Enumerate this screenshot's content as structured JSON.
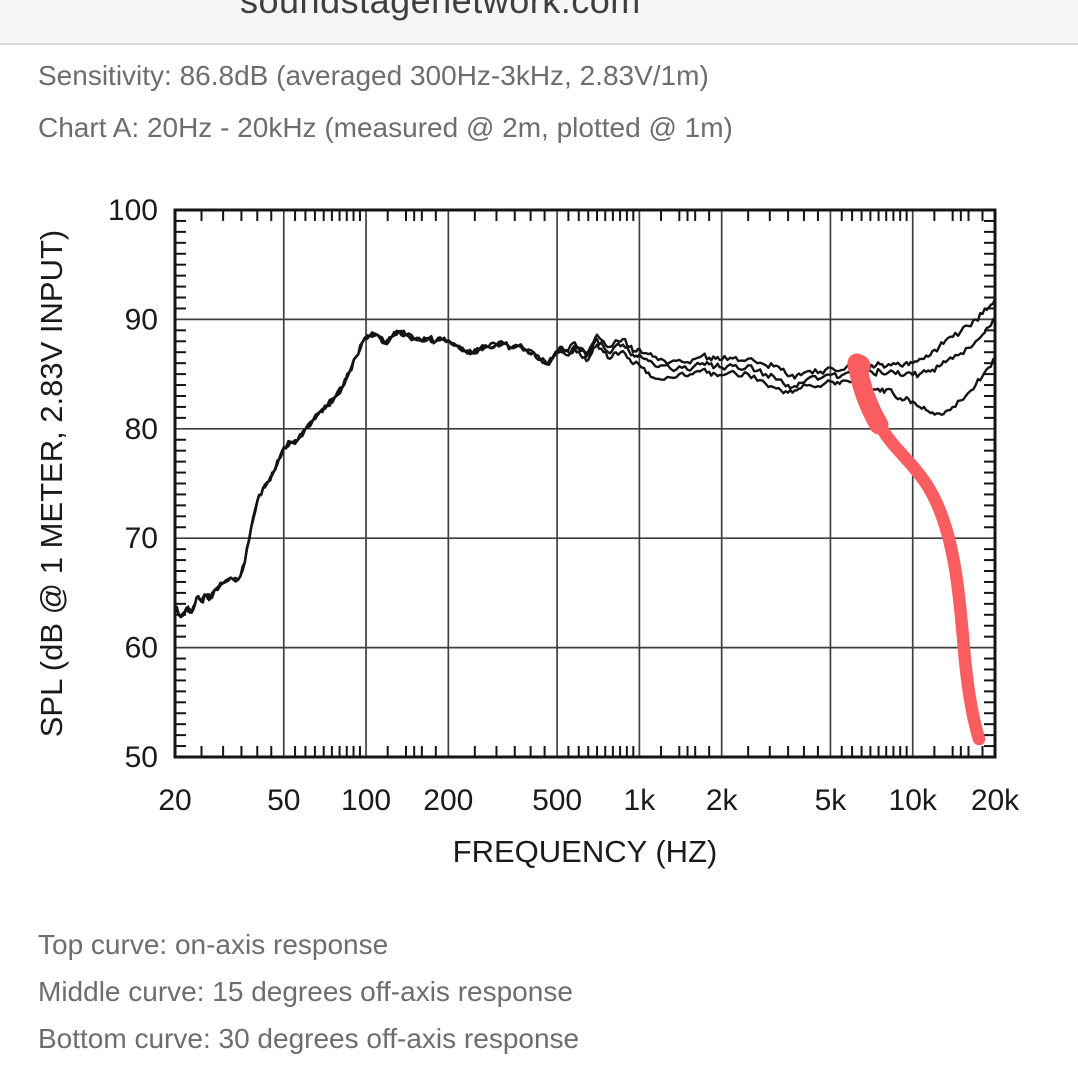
{
  "header": {
    "site_text": "soundstagenetwork.com"
  },
  "subtitles": {
    "sensitivity": "Sensitivity: 86.8dB (averaged 300Hz-3kHz, 2.83V/1m)",
    "chart_label": "Chart A: 20Hz - 20kHz (measured @ 2m, plotted @ 1m)"
  },
  "captions": [
    "Top curve: on-axis response",
    "Middle curve: 15 degrees off-axis response",
    "Bottom curve: 30 degrees off-axis response"
  ],
  "chart_data": {
    "type": "line",
    "xlabel": "FREQUENCY  (HZ)",
    "ylabel": "SPL (dB @ 1 METER, 2.83V INPUT)",
    "x_scale": "log",
    "xlim": [
      20,
      20000
    ],
    "ylim": [
      50,
      100
    ],
    "grid": true,
    "x_ticks": [
      {
        "value": 20,
        "label": "20"
      },
      {
        "value": 50,
        "label": "50"
      },
      {
        "value": 100,
        "label": "100"
      },
      {
        "value": 200,
        "label": "200"
      },
      {
        "value": 500,
        "label": "500"
      },
      {
        "value": 1000,
        "label": "1k"
      },
      {
        "value": 2000,
        "label": "2k"
      },
      {
        "value": 5000,
        "label": "5k"
      },
      {
        "value": 10000,
        "label": "10k"
      },
      {
        "value": 20000,
        "label": "20k"
      }
    ],
    "y_ticks": [
      100,
      90,
      80,
      70,
      60,
      50
    ],
    "x_gridlines": [
      50,
      100,
      200,
      500,
      1000,
      2000,
      5000,
      10000
    ],
    "y_gridlines": [
      60,
      70,
      80,
      90
    ],
    "line_color": "#141414",
    "frequencies": [
      20,
      21,
      22,
      23,
      24,
      25,
      26,
      27,
      28,
      30,
      32,
      34,
      36,
      38,
      40,
      42,
      44,
      46,
      48,
      50,
      53,
      56,
      60,
      64,
      68,
      72,
      77,
      82,
      87,
      92,
      97,
      103,
      110,
      117,
      124,
      132,
      140,
      150,
      160,
      170,
      180,
      190,
      200,
      215,
      230,
      245,
      260,
      280,
      300,
      320,
      340,
      360,
      385,
      410,
      435,
      460,
      480,
      500,
      520,
      550,
      580,
      610,
      640,
      670,
      700,
      740,
      780,
      820,
      870,
      920,
      960,
      1000,
      1060,
      1120,
      1200,
      1300,
      1400,
      1500,
      1600,
      1700,
      1800,
      1900,
      2000,
      2150,
      2300,
      2500,
      2700,
      2900,
      3100,
      3300,
      3500,
      3700,
      3900,
      4200,
      4500,
      4800,
      5100,
      5400,
      5700,
      6000,
      6400,
      6800,
      7200,
      7600,
      8000,
      8500,
      9000,
      9500,
      10000,
      10600,
      11200,
      11800,
      12500,
      13200,
      14000,
      15000,
      16000,
      17000,
      18000,
      19000,
      20000
    ],
    "series": [
      {
        "name": "on-axis response",
        "spl_db": [
          63.8,
          62.8,
          63.6,
          63.2,
          64.6,
          64.2,
          64.8,
          64.5,
          65.3,
          65.9,
          66.4,
          66.2,
          67.8,
          71.0,
          73.4,
          74.6,
          75.2,
          76.1,
          77.2,
          78.3,
          78.8,
          78.9,
          80.0,
          80.8,
          81.6,
          82.1,
          82.9,
          83.8,
          85.2,
          86.6,
          87.9,
          88.5,
          88.6,
          87.8,
          88.4,
          88.9,
          88.6,
          88.2,
          88.0,
          88.3,
          88.0,
          88.2,
          88.1,
          87.6,
          87.1,
          86.9,
          87.3,
          87.5,
          87.7,
          87.8,
          87.4,
          87.6,
          87.2,
          87.0,
          86.3,
          85.9,
          86.4,
          87.1,
          87.5,
          87.2,
          87.9,
          87.4,
          86.9,
          87.7,
          88.6,
          88.0,
          87.5,
          88.1,
          88.2,
          87.5,
          87.1,
          87.3,
          86.9,
          86.6,
          86.4,
          86.1,
          86.3,
          86.1,
          86.4,
          86.7,
          86.5,
          86.4,
          86.3,
          86.5,
          86.2,
          86.4,
          86.0,
          85.8,
          85.7,
          85.4,
          84.8,
          84.6,
          84.9,
          85.3,
          85.1,
          85.4,
          85.5,
          85.3,
          85.6,
          85.7,
          85.5,
          85.8,
          85.6,
          85.9,
          85.7,
          86.0,
          85.8,
          86.1,
          86.0,
          86.4,
          86.7,
          87.1,
          87.5,
          88.1,
          88.4,
          88.9,
          89.4,
          90.0,
          90.5,
          91.1,
          91.9
        ]
      },
      {
        "name": "15 degrees off-axis response",
        "spl_db": [
          63.8,
          62.8,
          63.6,
          63.2,
          64.6,
          64.2,
          64.8,
          64.5,
          65.3,
          65.9,
          66.4,
          66.2,
          67.8,
          71.0,
          73.4,
          74.6,
          75.2,
          76.1,
          77.2,
          78.3,
          78.8,
          78.9,
          80.0,
          80.8,
          81.6,
          82.1,
          82.9,
          83.8,
          85.2,
          86.6,
          87.9,
          88.5,
          88.6,
          87.8,
          88.4,
          88.9,
          88.6,
          88.2,
          88.0,
          88.3,
          88.0,
          88.2,
          88.1,
          87.6,
          87.1,
          86.9,
          87.3,
          87.5,
          87.7,
          87.8,
          87.4,
          87.6,
          87.2,
          87.0,
          86.3,
          85.9,
          86.4,
          87.1,
          87.3,
          87.0,
          87.6,
          87.1,
          86.6,
          87.3,
          88.2,
          87.5,
          86.9,
          87.6,
          87.7,
          87.0,
          86.6,
          86.8,
          86.4,
          86.0,
          85.8,
          85.5,
          85.7,
          85.4,
          85.8,
          86.0,
          85.9,
          85.7,
          85.6,
          85.9,
          85.5,
          85.8,
          85.3,
          85.0,
          84.8,
          84.5,
          84.0,
          83.9,
          84.2,
          84.7,
          84.5,
          84.9,
          85.0,
          84.7,
          85.1,
          85.2,
          84.9,
          85.2,
          85.0,
          85.3,
          85.0,
          85.2,
          84.9,
          85.1,
          84.9,
          85.0,
          85.2,
          85.4,
          85.7,
          86.1,
          86.4,
          86.9,
          87.4,
          88.0,
          88.6,
          89.3,
          90.2
        ]
      },
      {
        "name": "30 degrees off-axis response",
        "spl_db": [
          63.8,
          62.8,
          63.6,
          63.2,
          64.6,
          64.2,
          64.8,
          64.5,
          65.3,
          65.9,
          66.4,
          66.2,
          67.8,
          71.0,
          73.4,
          74.6,
          75.2,
          76.1,
          77.2,
          78.3,
          78.8,
          78.9,
          80.0,
          80.8,
          81.6,
          82.1,
          82.9,
          83.8,
          85.2,
          86.6,
          87.9,
          88.5,
          88.6,
          87.8,
          88.4,
          88.9,
          88.6,
          88.2,
          88.0,
          88.3,
          88.0,
          88.2,
          88.1,
          87.6,
          87.1,
          86.9,
          87.3,
          87.5,
          87.7,
          87.8,
          87.4,
          87.6,
          87.2,
          87.0,
          86.3,
          85.9,
          86.4,
          87.1,
          87.0,
          86.7,
          87.3,
          86.7,
          86.2,
          86.9,
          87.7,
          87.0,
          86.4,
          87.0,
          87.1,
          86.4,
          86.0,
          85.8,
          85.1,
          84.7,
          84.5,
          84.7,
          85.0,
          84.8,
          85.2,
          85.4,
          85.2,
          85.0,
          84.9,
          85.2,
          84.8,
          85.0,
          84.4,
          84.1,
          83.8,
          83.5,
          83.3,
          83.5,
          83.7,
          84.0,
          83.9,
          84.2,
          84.3,
          84.1,
          84.4,
          84.3,
          84.0,
          83.9,
          83.6,
          83.4,
          83.6,
          83.2,
          82.8,
          82.9,
          82.5,
          82.0,
          81.7,
          81.5,
          81.4,
          81.6,
          82.0,
          82.6,
          83.3,
          84.0,
          84.8,
          85.6,
          86.5
        ]
      }
    ],
    "annotation": {
      "type": "freehand-stroke",
      "color": "#f95d60",
      "start": {
        "freq_hz": 6300,
        "spl_db": 85.5
      },
      "end": {
        "freq_hz": 17500,
        "spl_db": 51.5
      }
    }
  }
}
